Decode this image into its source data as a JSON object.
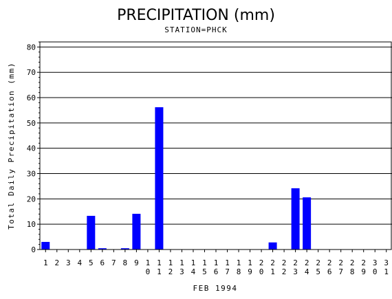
{
  "chart_data": {
    "type": "bar",
    "title": "PRECIPITATION (mm)",
    "subtitle": "STATION=PHCK",
    "xlabel": "FEB 1994",
    "ylabel": "Total Daily Precipitation (mm)",
    "ylim": [
      0,
      82
    ],
    "yticks": [
      0,
      10,
      20,
      30,
      40,
      50,
      60,
      70,
      80
    ],
    "grid": true,
    "bar_color": "#0000ff",
    "categories": [
      "1",
      "2",
      "3",
      "4",
      "5",
      "6",
      "7",
      "8",
      "9",
      "10",
      "11",
      "12",
      "13",
      "14",
      "15",
      "16",
      "17",
      "18",
      "19",
      "20",
      "21",
      "22",
      "23",
      "24",
      "25",
      "26",
      "27",
      "28",
      "29",
      "30",
      "31"
    ],
    "values": [
      3,
      0,
      0,
      0,
      13.3,
      0.5,
      0,
      0.5,
      14.1,
      0,
      56.2,
      0,
      0,
      0,
      0,
      0,
      0,
      0,
      0,
      0,
      2.8,
      0,
      24.2,
      20.6,
      0,
      0,
      0,
      0,
      0,
      0,
      0
    ]
  }
}
